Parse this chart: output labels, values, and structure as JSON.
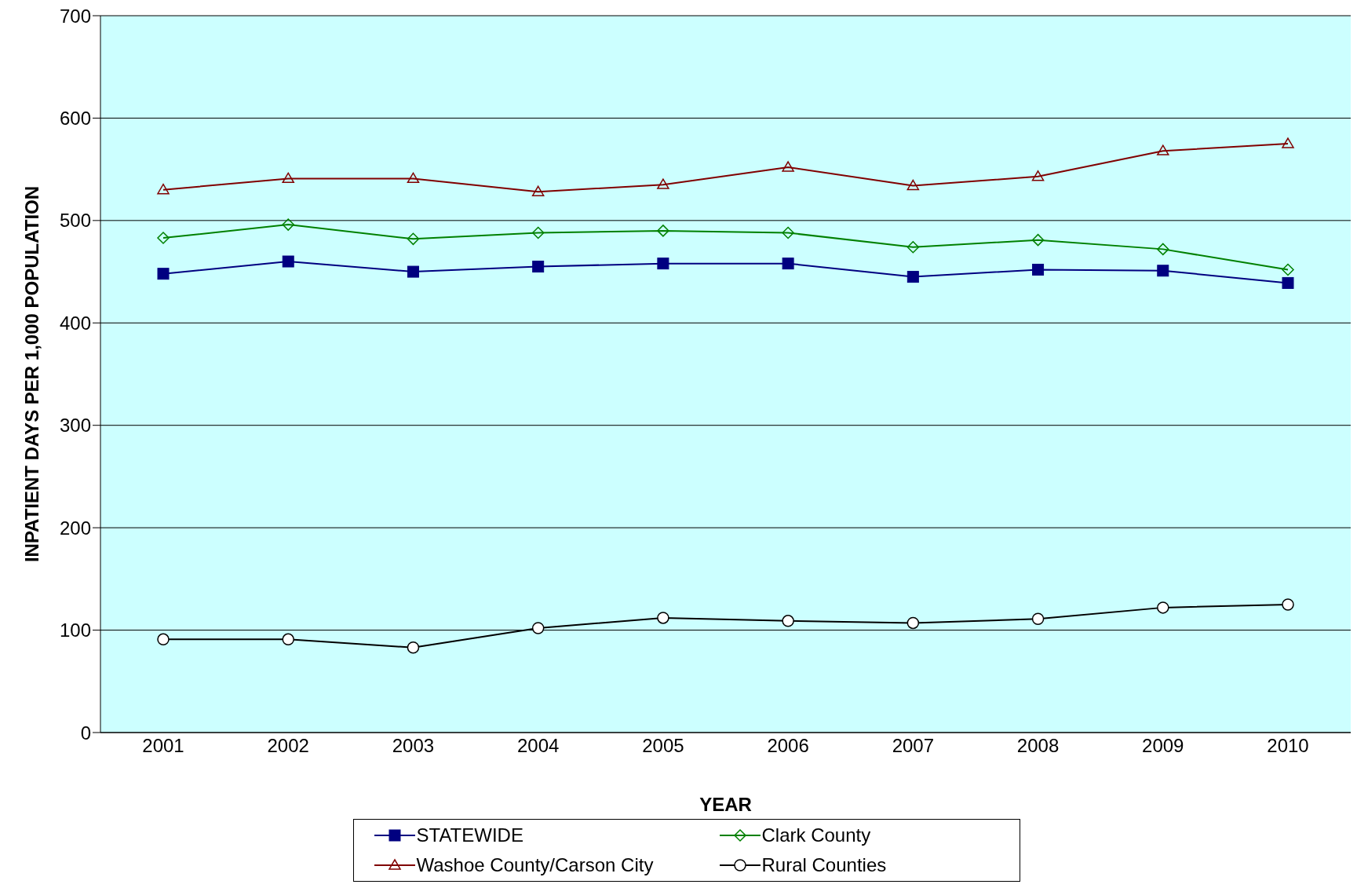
{
  "chart_data": {
    "type": "line",
    "xlabel": "YEAR",
    "ylabel": "INPATIENT DAYS PER 1,000 POPULATION",
    "categories": [
      "2001",
      "2002",
      "2003",
      "2004",
      "2005",
      "2006",
      "2007",
      "2008",
      "2009",
      "2010"
    ],
    "series": [
      {
        "name": "STATEWIDE",
        "color": "#000080",
        "marker": "square",
        "values": [
          448,
          460,
          450,
          455,
          458,
          458,
          445,
          452,
          451,
          439
        ]
      },
      {
        "name": "Clark County",
        "color": "#008000",
        "marker": "diamond",
        "values": [
          483,
          496,
          482,
          488,
          490,
          488,
          474,
          481,
          472,
          452
        ]
      },
      {
        "name": "Washoe County/Carson City",
        "color": "#800000",
        "marker": "triangle",
        "values": [
          530,
          541,
          541,
          528,
          535,
          552,
          534,
          543,
          568,
          575
        ]
      },
      {
        "name": "Rural Counties",
        "color": "#000000",
        "marker": "circle",
        "values": [
          91,
          91,
          83,
          102,
          112,
          109,
          107,
          111,
          122,
          125
        ]
      }
    ],
    "ylim": [
      0,
      700
    ],
    "yticks": [
      0,
      100,
      200,
      300,
      400,
      500,
      600,
      700
    ],
    "grid": "y",
    "legend": "bottom",
    "line_style": "solid"
  }
}
